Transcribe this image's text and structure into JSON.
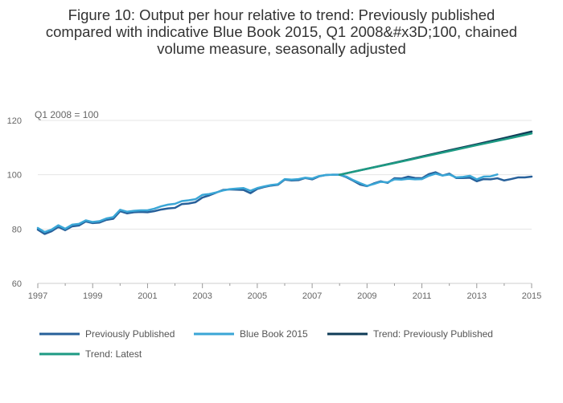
{
  "chart_data": {
    "type": "line",
    "title_lines": [
      "Figure 10: Output per hour relative to trend: Previously published",
      "compared with indicative Blue Book 2015, Q1 2008&#x3D;100, chained",
      "volume measure, seasonally adjusted"
    ],
    "unit_label": "Q1 2008 = 100",
    "xlim": [
      1997,
      2015
    ],
    "ylim": [
      60,
      120
    ],
    "x_ticks": [
      1997,
      1999,
      2001,
      2003,
      2005,
      2007,
      2009,
      2011,
      2013,
      2015
    ],
    "y_ticks": [
      60,
      80,
      100,
      120
    ],
    "grid": true,
    "legend_position": "bottom",
    "series": [
      {
        "name": "Previously Published",
        "color": "#27609a",
        "x": [
          1997,
          1997.25,
          1997.5,
          1997.75,
          1998,
          1998.25,
          1998.5,
          1998.75,
          1999,
          1999.25,
          1999.5,
          1999.75,
          2000,
          2000.25,
          2000.5,
          2000.75,
          2001,
          2001.25,
          2001.5,
          2001.75,
          2002,
          2002.25,
          2002.5,
          2002.75,
          2003,
          2003.25,
          2003.5,
          2003.75,
          2004,
          2004.25,
          2004.5,
          2004.75,
          2005,
          2005.25,
          2005.5,
          2005.75,
          2006,
          2006.25,
          2006.5,
          2006.75,
          2007,
          2007.25,
          2007.5,
          2007.75,
          2008,
          2008.25,
          2008.5,
          2008.75,
          2009,
          2009.25,
          2009.5,
          2009.75,
          2010,
          2010.25,
          2010.5,
          2010.75,
          2011,
          2011.25,
          2011.5,
          2011.75,
          2012,
          2012.25,
          2012.5,
          2012.75,
          2013,
          2013.25,
          2013.5,
          2013.75,
          2014,
          2014.25,
          2014.5,
          2014.75,
          2015
        ],
        "values": [
          79.8,
          78.2,
          79.2,
          80.8,
          79.6,
          81.0,
          81.3,
          82.8,
          82.2,
          82.4,
          83.4,
          83.8,
          86.6,
          85.8,
          86.2,
          86.3,
          86.2,
          86.6,
          87.2,
          87.6,
          87.8,
          89.2,
          89.4,
          89.9,
          91.6,
          92.4,
          93.4,
          94.4,
          94.6,
          94.5,
          94.4,
          93.2,
          94.8,
          95.5,
          96.0,
          96.3,
          98.2,
          97.9,
          98.0,
          98.8,
          98.3,
          99.4,
          99.9,
          100.0,
          100.0,
          99.1,
          97.8,
          96.4,
          95.8,
          96.8,
          97.6,
          97.0,
          98.7,
          98.6,
          99.3,
          98.8,
          98.7,
          100.2,
          100.9,
          99.7,
          100.4,
          98.8,
          98.8,
          98.9,
          97.6,
          98.4,
          98.3,
          98.7,
          97.9,
          98.4,
          99.0,
          99.0,
          99.3
        ]
      },
      {
        "name": "Blue Book 2015",
        "color": "#3aa6d6",
        "x": [
          1997,
          1997.25,
          1997.5,
          1997.75,
          1998,
          1998.25,
          1998.5,
          1998.75,
          1999,
          1999.25,
          1999.5,
          1999.75,
          2000,
          2000.25,
          2000.5,
          2000.75,
          2001,
          2001.25,
          2001.5,
          2001.75,
          2002,
          2002.25,
          2002.5,
          2002.75,
          2003,
          2003.25,
          2003.5,
          2003.75,
          2004,
          2004.25,
          2004.5,
          2004.75,
          2005,
          2005.25,
          2005.5,
          2005.75,
          2006,
          2006.25,
          2006.5,
          2006.75,
          2007,
          2007.25,
          2007.5,
          2007.75,
          2008,
          2008.25,
          2008.5,
          2008.75,
          2009,
          2009.25,
          2009.5,
          2009.75,
          2010,
          2010.25,
          2010.5,
          2010.75,
          2011,
          2011.25,
          2011.5,
          2011.75,
          2012,
          2012.25,
          2012.5,
          2012.75,
          2013,
          2013.25,
          2013.5,
          2013.75
        ],
        "values": [
          80.4,
          78.9,
          79.8,
          81.4,
          80.1,
          81.6,
          81.9,
          83.2,
          82.6,
          82.9,
          83.9,
          84.4,
          87.1,
          86.4,
          86.7,
          86.9,
          86.9,
          87.5,
          88.4,
          89.0,
          89.3,
          90.3,
          90.6,
          91.0,
          92.6,
          92.9,
          93.5,
          94.2,
          94.7,
          94.9,
          95.1,
          94.1,
          95.1,
          95.7,
          96.2,
          96.5,
          98.4,
          98.2,
          98.4,
          98.9,
          98.6,
          99.5,
          99.9,
          100.0,
          100.0,
          99.3,
          98.0,
          96.9,
          95.9,
          96.6,
          97.4,
          97.2,
          98.3,
          98.2,
          98.5,
          98.3,
          98.4,
          99.6,
          100.4,
          99.7,
          100.1,
          99.0,
          99.2,
          99.6,
          98.3,
          99.3,
          99.4,
          100.1
        ]
      },
      {
        "name": "Trend: Previously Published",
        "color": "#0f3b57",
        "x": [
          2008,
          2009,
          2010,
          2011,
          2012,
          2013,
          2014,
          2015
        ],
        "values": [
          100.0,
          102.2,
          104.4,
          106.7,
          109.0,
          111.2,
          113.5,
          115.9
        ]
      },
      {
        "name": "Trend: Latest",
        "color": "#1d9a83",
        "x": [
          2008,
          2009,
          2010,
          2011,
          2012,
          2013,
          2014,
          2015
        ],
        "values": [
          100.0,
          102.2,
          104.3,
          106.5,
          108.7,
          110.9,
          113.0,
          115.2
        ]
      }
    ]
  }
}
